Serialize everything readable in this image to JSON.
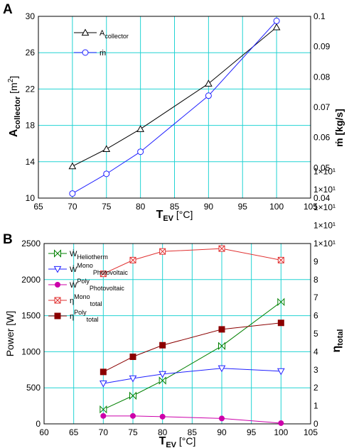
{
  "chart_data": [
    {
      "panel_label": "A",
      "type": "line",
      "xlabel": {
        "main": "T",
        "sub": "EV",
        "unit": "[°C]"
      },
      "ylabel_left": {
        "main": "A",
        "sub": "collector",
        "unit": "[m",
        "sup": "2",
        "close": "]"
      },
      "ylabel_right": {
        "text": "ṁ [kg/s]"
      },
      "xlim": [
        65,
        105
      ],
      "xticks": [
        "65",
        "70",
        "75",
        "80",
        "85",
        "90",
        "95",
        "100",
        "105"
      ],
      "ylim_left": [
        10,
        30
      ],
      "yticks_left": [
        "10",
        "14",
        "18",
        "22",
        "26",
        "30"
      ],
      "ylim_right": [
        0.04,
        0.1
      ],
      "yticks_right": [
        "0.04",
        "0.05",
        "0.06",
        "0.07",
        "0.08",
        "0.09",
        "0.1"
      ],
      "grid": true,
      "legend_position": "top-left",
      "series": [
        {
          "name": "A",
          "name_sub": "collector",
          "axis": "left",
          "marker": "triangle-up",
          "color": "#000000",
          "x": [
            70,
            75,
            80,
            90,
            100
          ],
          "y": [
            13.5,
            15.4,
            17.6,
            22.6,
            28.8
          ]
        },
        {
          "name": "ṁ",
          "axis": "right",
          "marker": "circle",
          "color": "#1f1fff",
          "x": [
            70,
            75,
            80,
            90,
            100
          ],
          "y": [
            0.0415,
            0.048,
            0.0553,
            0.0738,
            0.0985
          ]
        }
      ]
    },
    {
      "panel_label": "B",
      "type": "line",
      "xlabel": {
        "main": "T",
        "sub": "EV",
        "unit": "[°C]"
      },
      "ylabel_left": {
        "text": "Power [W]"
      },
      "ylabel_right": {
        "main": "η",
        "sub": "total"
      },
      "xlim": [
        60,
        105
      ],
      "xticks": [
        "60",
        "65",
        "70",
        "75",
        "80",
        "85",
        "90",
        "95",
        "100",
        "105"
      ],
      "ylim_left": [
        0,
        2500
      ],
      "yticks_left": [
        "0",
        "500",
        "1000",
        "1500",
        "2000",
        "2500"
      ],
      "ylim_right": [
        0,
        10
      ],
      "yticks_right": [
        "0",
        "1",
        "2",
        "3",
        "4",
        "5",
        "6",
        "7",
        "8",
        "9",
        "1×10¹",
        "1×10¹",
        "1×10¹",
        "1×10¹",
        "1×10¹"
      ],
      "grid": true,
      "legend_position": "top-left",
      "series": [
        {
          "name": "Ẇ",
          "name_sub": "Heliotherm",
          "axis": "left",
          "marker": "bowtie",
          "color": "#008000",
          "x": [
            70,
            75,
            80,
            90,
            100
          ],
          "y": [
            200,
            390,
            600,
            1080,
            1690
          ]
        },
        {
          "name": "Ẇ",
          "name_sup": "Mono",
          "name_sub": "Photovoltaic",
          "axis": "left",
          "marker": "triangle-down",
          "color": "#2020ff",
          "x": [
            70,
            75,
            80,
            90,
            100
          ],
          "y": [
            560,
            630,
            690,
            770,
            730
          ]
        },
        {
          "name": "Ẇ",
          "name_sup": "Poly",
          "name_sub": "Photovoltaic",
          "axis": "left",
          "marker": "circle-filled",
          "color": "#cc00aa",
          "x": [
            70,
            75,
            80,
            90,
            100
          ],
          "y": [
            110,
            110,
            100,
            75,
            10
          ]
        },
        {
          "name": "η",
          "name_sup": "Mono",
          "name_sub": "total",
          "axis": "left",
          "marker": "x-box",
          "color": "#e03030",
          "x": [
            70,
            75,
            80,
            90,
            100
          ],
          "y": [
            2080,
            2270,
            2390,
            2430,
            2270
          ]
        },
        {
          "name": "η",
          "name_sup": "Poly",
          "name_sub": "total",
          "axis": "left",
          "marker": "square-filled",
          "color": "#8b0000",
          "x": [
            70,
            75,
            80,
            90,
            100
          ],
          "y": [
            720,
            930,
            1090,
            1310,
            1400
          ]
        }
      ]
    }
  ]
}
